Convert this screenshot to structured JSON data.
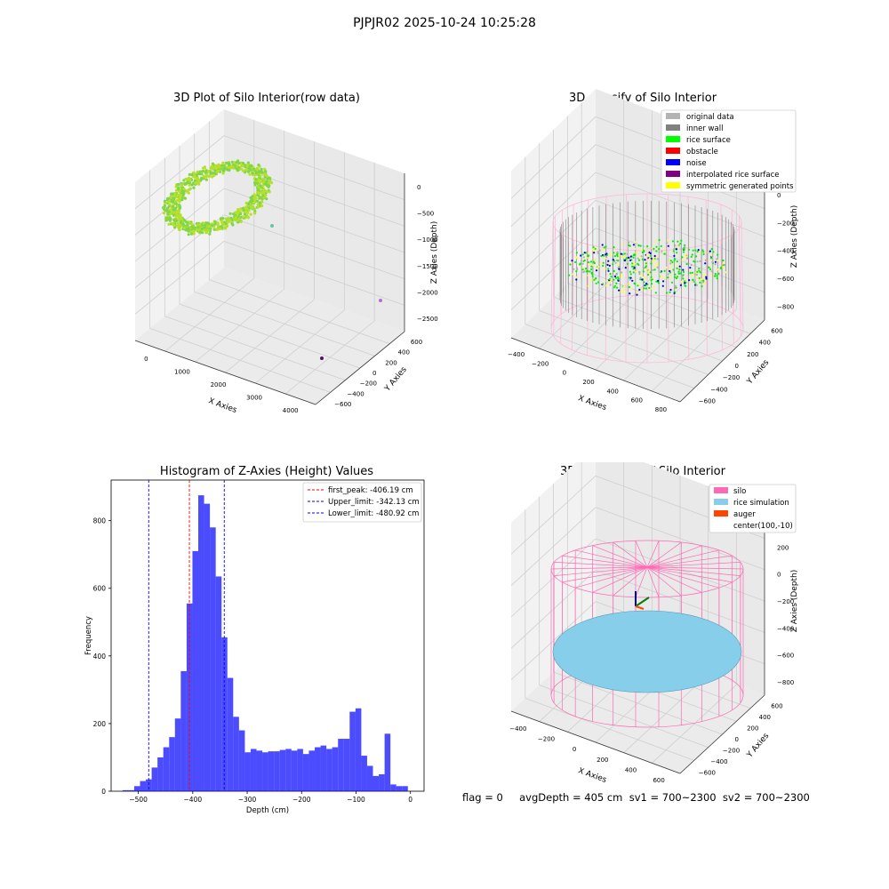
{
  "suptitle": "PJPJR02 2025-10-24 10:25:28",
  "panels": {
    "raw": {
      "title": "3D Plot of Silo Interior(row data)",
      "xlabel": "X Axies",
      "ylabel": "Y Axies",
      "zlabel": "Z Axies (Depth)",
      "xticks": [
        "0",
        "1000",
        "2000",
        "3000",
        "4000"
      ],
      "yticks": [
        "−600",
        "−400",
        "−200",
        "0",
        "200",
        "400",
        "600"
      ],
      "zticks": [
        "0",
        "−500",
        "−1000",
        "−1500",
        "−2000",
        "−2500"
      ]
    },
    "classify": {
      "title": "3D classify of Silo Interior",
      "xlabel": "X Axies",
      "ylabel": "Y Axies",
      "zlabel": "Z Axies (Depth)",
      "xticks": [
        "−400",
        "−200",
        "0",
        "200",
        "400",
        "600",
        "800"
      ],
      "yticks": [
        "−600",
        "−400",
        "−200",
        "0",
        "200",
        "400",
        "600"
      ],
      "zticks": [
        "200",
        "0",
        "−200",
        "−400",
        "−600",
        "−800"
      ],
      "legend": [
        {
          "label": "original data",
          "color": "#b3b3b3"
        },
        {
          "label": "inner wall",
          "color": "#808080"
        },
        {
          "label": "rice surface",
          "color": "#00ff00"
        },
        {
          "label": "obstacle",
          "color": "#ff0000"
        },
        {
          "label": "noise",
          "color": "#0000ff"
        },
        {
          "label": "interpolated rice surface",
          "color": "#800080"
        },
        {
          "label": "symmetric generated points",
          "color": "#ffff00"
        }
      ]
    },
    "simulation": {
      "title": "3D simulation of Silo Interior",
      "xlabel": "X Axies",
      "ylabel": "Y Axies",
      "zlabel": "Z Axies (Depth)",
      "xticks": [
        "−400",
        "−200",
        "0",
        "200",
        "400",
        "600"
      ],
      "yticks": [
        "−600",
        "−400",
        "−200",
        "0",
        "200",
        "400",
        "600"
      ],
      "zticks": [
        "400",
        "200",
        "0",
        "−200",
        "−400",
        "−600",
        "−800"
      ],
      "legend": [
        {
          "label": "silo",
          "color": "#ff69b4",
          "swatch": true
        },
        {
          "label": "rice simulation",
          "color": "#87ceeb",
          "swatch": true
        },
        {
          "label": "auger",
          "color": "#ff4500",
          "swatch": true
        },
        {
          "label": "center(100,-10)",
          "color": "#ffffff",
          "swatch": false
        }
      ]
    }
  },
  "footer": {
    "text": "flag = 0     avgDepth = 405 cm  sv1 = 700~2300  sv2 = 700~2300"
  },
  "chart_data": [
    {
      "type": "bar",
      "title": "Histogram of Z-Axies (Height) Values",
      "xlabel": "Depth (cm)",
      "ylabel": "Frequency",
      "xlim": [
        -550,
        25
      ],
      "ylim": [
        0,
        920
      ],
      "xticks": [
        -500,
        -400,
        -300,
        -200,
        -100,
        0
      ],
      "xtick_labels": [
        "−500",
        "−400",
        "−300",
        "−200",
        "−100",
        "0"
      ],
      "yticks": [
        0,
        200,
        400,
        600,
        800
      ],
      "bar_color": "#0000ff",
      "bin_width": 10.7,
      "bin_start": -529,
      "values": [
        3,
        3,
        15,
        30,
        35,
        70,
        100,
        130,
        160,
        215,
        355,
        555,
        710,
        875,
        850,
        780,
        635,
        455,
        335,
        220,
        180,
        115,
        125,
        120,
        115,
        118,
        118,
        122,
        125,
        120,
        125,
        110,
        120,
        130,
        135,
        125,
        130,
        155,
        155,
        235,
        245,
        105,
        75,
        45,
        50,
        170,
        20,
        15,
        15
      ],
      "lines": [
        {
          "x": -406.19,
          "color": "#ff0000",
          "label": "first_peak: -406.19 cm"
        },
        {
          "x": -342.13,
          "color": "#0000ff",
          "label": "Upper_limit: -342.13 cm"
        },
        {
          "x": -480.92,
          "color": "#0000ff",
          "label": "Lower_limit: -480.92 cm"
        }
      ],
      "legend_position": "top-right"
    }
  ]
}
